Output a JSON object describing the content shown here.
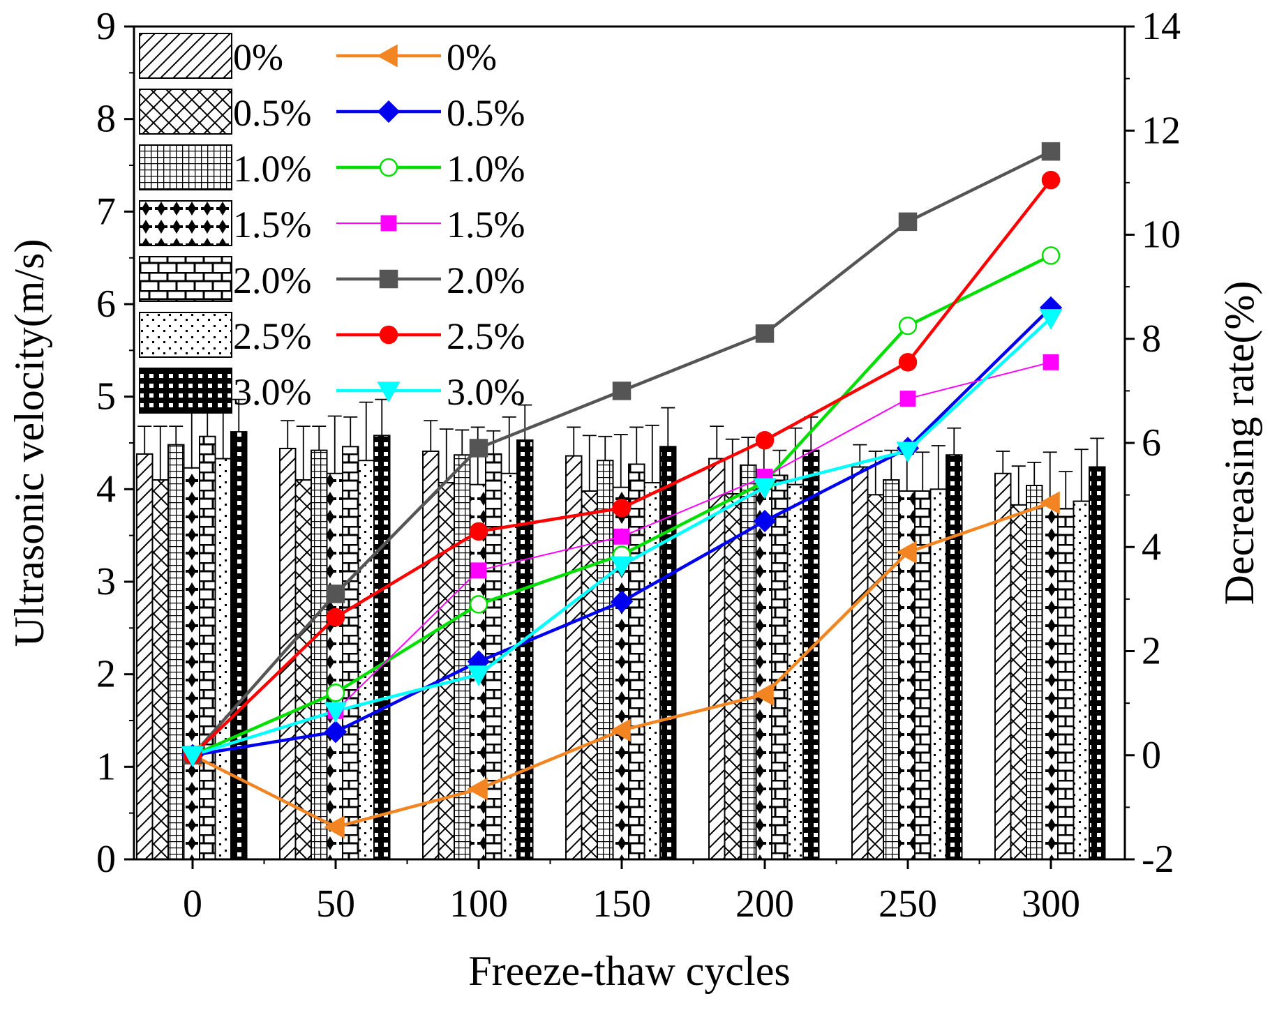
{
  "chart_data": {
    "type": "bar",
    "combined_with": "line",
    "x": [
      0,
      50,
      100,
      150,
      200,
      250,
      300
    ],
    "xlabel": "Freeze-thaw cycles",
    "ylabel": "Ultrasonic velocity(m/s)",
    "y2label": "Decreasing rate(%)",
    "ylim": [
      0,
      9
    ],
    "yticks": [
      "0",
      "1",
      "2",
      "3",
      "4",
      "5",
      "6",
      "7",
      "8",
      "9"
    ],
    "y2lim": [
      -2,
      14
    ],
    "y2ticks": [
      "-2",
      "0",
      "2",
      "4",
      "6",
      "8",
      "10",
      "12",
      "14"
    ],
    "xticks": [
      "0",
      "50",
      "100",
      "150",
      "200",
      "250",
      "300"
    ],
    "bar_series": [
      {
        "name": "0%",
        "pattern": "diagonal",
        "values": [
          4.38,
          4.44,
          4.41,
          4.36,
          4.33,
          4.24,
          4.17
        ],
        "errors": [
          0.3,
          0.3,
          0.33,
          0.31,
          0.35,
          0.24,
          0.24
        ]
      },
      {
        "name": "0.5%",
        "pattern": "crosshatch",
        "values": [
          4.1,
          4.1,
          4.07,
          3.98,
          3.95,
          3.94,
          3.83
        ],
        "errors": [
          0.58,
          0.58,
          0.58,
          0.6,
          0.59,
          0.47,
          0.42
        ]
      },
      {
        "name": "1.0%",
        "pattern": "grid",
        "values": [
          4.48,
          4.42,
          4.37,
          4.31,
          4.26,
          4.1,
          4.04
        ],
        "errors": [
          0.2,
          0.26,
          0.27,
          0.26,
          0.3,
          0.32,
          0.25
        ]
      },
      {
        "name": "1.5%",
        "pattern": "crosses",
        "values": [
          4.23,
          4.17,
          4.05,
          4.02,
          4.0,
          3.98,
          3.83
        ],
        "errors": [
          0.63,
          0.62,
          0.62,
          0.57,
          0.55,
          0.4,
          0.57
        ]
      },
      {
        "name": "2.0%",
        "pattern": "brick",
        "values": [
          4.57,
          4.46,
          4.38,
          4.27,
          4.15,
          3.98,
          3.79
        ],
        "errors": [
          0.29,
          0.32,
          0.25,
          0.4,
          0.27,
          0.42,
          0.4
        ]
      },
      {
        "name": "2.5%",
        "pattern": "dots",
        "values": [
          4.33,
          4.31,
          4.17,
          4.07,
          4.05,
          4.0,
          3.87
        ],
        "errors": [
          0.63,
          0.63,
          0.61,
          0.62,
          0.61,
          0.47,
          0.56
        ]
      },
      {
        "name": "3.0%",
        "pattern": "dense",
        "values": [
          4.62,
          4.58,
          4.53,
          4.46,
          4.42,
          4.37,
          4.24
        ],
        "errors": [
          0.35,
          0.39,
          0.38,
          0.42,
          0.36,
          0.29,
          0.31
        ]
      }
    ],
    "line_series": [
      {
        "name": "0%",
        "color": "#f28522",
        "marker": "triangle-left",
        "filled": true,
        "thin": false,
        "values": [
          0,
          -1.38,
          -0.65,
          0.48,
          1.17,
          3.9,
          4.85
        ]
      },
      {
        "name": "0.5%",
        "color": "#0000f0",
        "marker": "diamond",
        "filled": true,
        "thin": false,
        "values": [
          0,
          0.45,
          1.8,
          2.95,
          4.5,
          5.9,
          8.6
        ]
      },
      {
        "name": "1.0%",
        "color": "#00e000",
        "marker": "circle",
        "filled": false,
        "thin": false,
        "values": [
          0,
          1.2,
          2.9,
          3.85,
          5.25,
          8.25,
          9.6
        ]
      },
      {
        "name": "1.5%",
        "color": "#ff00ff",
        "marker": "square-small",
        "filled": true,
        "thin": true,
        "values": [
          0,
          0.85,
          3.55,
          4.2,
          5.35,
          6.85,
          7.55
        ]
      },
      {
        "name": "2.0%",
        "color": "#555555",
        "marker": "square",
        "filled": true,
        "thin": false,
        "values": [
          0,
          3.1,
          5.9,
          7.0,
          8.1,
          10.25,
          11.6
        ]
      },
      {
        "name": "2.5%",
        "color": "#ff0000",
        "marker": "circle",
        "filled": true,
        "thin": false,
        "values": [
          0,
          2.65,
          4.3,
          4.75,
          6.05,
          7.55,
          11.05
        ]
      },
      {
        "name": "3.0%",
        "color": "#00ffff",
        "marker": "triangle-down",
        "filled": true,
        "thin": false,
        "values": [
          0,
          0.85,
          1.55,
          3.65,
          5.15,
          5.85,
          8.4
        ]
      }
    ],
    "legend_placement": "top-left",
    "grid": false
  }
}
